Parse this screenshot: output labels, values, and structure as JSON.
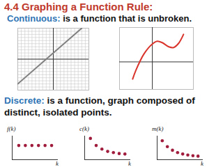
{
  "title": "4.4 Graphing a Function Rule:",
  "continuous": {
    "term": "Continuous:",
    "definition": "is a function that is unbroken."
  },
  "discrete": {
    "term": "Discrete:",
    "definition": "is a function, graph composed of distinct, isolated points."
  },
  "chart_data": [
    {
      "type": "line",
      "x": [
        -10,
        8
      ],
      "values": [
        -8,
        10
      ],
      "color": "#7f7f7f",
      "xlim": [
        -10,
        10
      ],
      "ylim": [
        -10,
        10
      ],
      "grid": true,
      "tick_labels": false
    },
    {
      "type": "line",
      "x": [
        -1.2,
        -1,
        -0.5,
        0,
        0.3,
        0.6,
        1,
        1.3,
        1.6,
        1.9
      ],
      "values": [
        -2.5,
        -1.2,
        1.2,
        2.6,
        3,
        2.8,
        2.2,
        2.1,
        2.7,
        4
      ],
      "color": "#d9342b",
      "xlim": [
        -2,
        2.5
      ],
      "ylim": [
        -4,
        5
      ],
      "grid": false,
      "tick_labels": false
    },
    {
      "type": "scatter",
      "x": [
        1,
        2,
        3,
        4,
        5,
        6
      ],
      "values": [
        6,
        6,
        6,
        6,
        6,
        6
      ],
      "color": "#a01c3c",
      "xlim": [
        0,
        7
      ],
      "ylim": [
        0,
        10
      ],
      "xlabel": "k",
      "ylabel": "f(k)",
      "tick_labels": false
    },
    {
      "type": "scatter",
      "x": [
        1,
        2,
        3,
        4,
        5,
        6,
        7
      ],
      "values": [
        9,
        6,
        4.5,
        3.5,
        3,
        2.6,
        2.4
      ],
      "color": "#a01c3c",
      "xlim": [
        0,
        8
      ],
      "ylim": [
        0,
        10
      ],
      "xlabel": "k",
      "ylabel": "c(k)",
      "tick_labels": false
    },
    {
      "type": "scatter",
      "x": [
        1,
        2,
        3,
        4,
        5,
        6,
        7,
        8
      ],
      "values": [
        8,
        5.5,
        4,
        3,
        2.4,
        2,
        1.7,
        1.5
      ],
      "color": "#a01c3c",
      "xlim": [
        0,
        9
      ],
      "ylim": [
        0,
        10
      ],
      "xlabel": "k",
      "ylabel": "m(k)",
      "tick_labels": false
    }
  ]
}
